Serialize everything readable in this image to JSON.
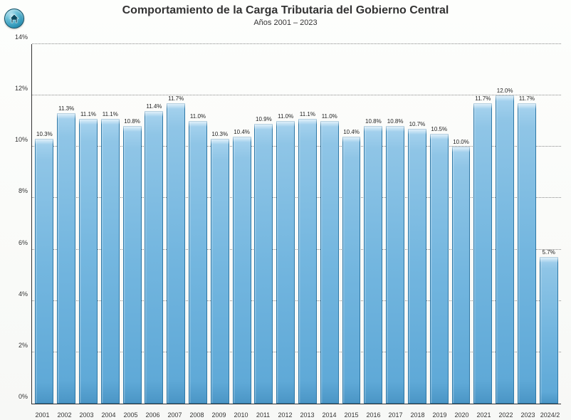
{
  "chart": {
    "type": "bar",
    "title": "Comportamiento de la Carga Tributaria del Gobierno Central",
    "subtitle": "Años 2001 – 2023",
    "title_fontsize": 16,
    "subtitle_fontsize": 11,
    "font_family": "Segoe UI, Helvetica Neue, Arial, sans-serif",
    "background_gradient": [
      "#fdfefc",
      "#f7f8f6"
    ],
    "axis_color": "#333333",
    "grid_color": "#888888",
    "grid_style": "dotted",
    "bar_fill_gradient": [
      "#a9d4ef",
      "#8fc5e6",
      "#73b6df",
      "#5fa9d7",
      "#4a95c5"
    ],
    "bar_border_color": "#2f78a6",
    "bar_width_ratio": 0.84,
    "value_label_fontsize": 8,
    "value_label_color": "#222222",
    "xlabel_fontsize": 9,
    "ylabel_fontsize": 9,
    "ylim": [
      0,
      14
    ],
    "ytick_step": 2,
    "yticks": [
      {
        "v": 0,
        "label": "0%"
      },
      {
        "v": 2,
        "label": "2%"
      },
      {
        "v": 4,
        "label": "4%"
      },
      {
        "v": 6,
        "label": "6%"
      },
      {
        "v": 8,
        "label": "8%"
      },
      {
        "v": 10,
        "label": "10%"
      },
      {
        "v": 12,
        "label": "12%"
      },
      {
        "v": 14,
        "label": "14%"
      }
    ],
    "categories": [
      "2001",
      "2002",
      "2003",
      "2004",
      "2005",
      "2006",
      "2007",
      "2008",
      "2009",
      "2010",
      "2011",
      "2012",
      "2013",
      "2014",
      "2015",
      "2016",
      "2017",
      "2018",
      "2019",
      "2020",
      "2021",
      "2022",
      "2023",
      "2024/2"
    ],
    "values": [
      10.3,
      11.3,
      11.1,
      11.1,
      10.8,
      11.4,
      11.7,
      11.0,
      10.3,
      10.4,
      10.9,
      11.0,
      11.1,
      11.0,
      10.4,
      10.8,
      10.8,
      10.7,
      10.5,
      10.0,
      11.7,
      12.0,
      11.7,
      5.7
    ],
    "value_labels": [
      "10.3%",
      "11.3%",
      "11.1%",
      "11.1%",
      "10.8%",
      "11.4%",
      "11.7%",
      "11.0%",
      "10.3%",
      "10.4%",
      "10.9%",
      "11.0%",
      "11.1%",
      "11.0%",
      "10.4%",
      "10.8%",
      "10.8%",
      "10.7%",
      "10.5%",
      "10.0%",
      "11.7%",
      "12.0%",
      "11.7%",
      "5.7%"
    ]
  },
  "home_icon": {
    "name": "home-icon",
    "bg_gradient": [
      "#bfe6f2",
      "#6ac0d8",
      "#2a92b5",
      "#0f5b74"
    ],
    "border_color": "#0d4f66",
    "glyph_color": "#0b4a60"
  }
}
